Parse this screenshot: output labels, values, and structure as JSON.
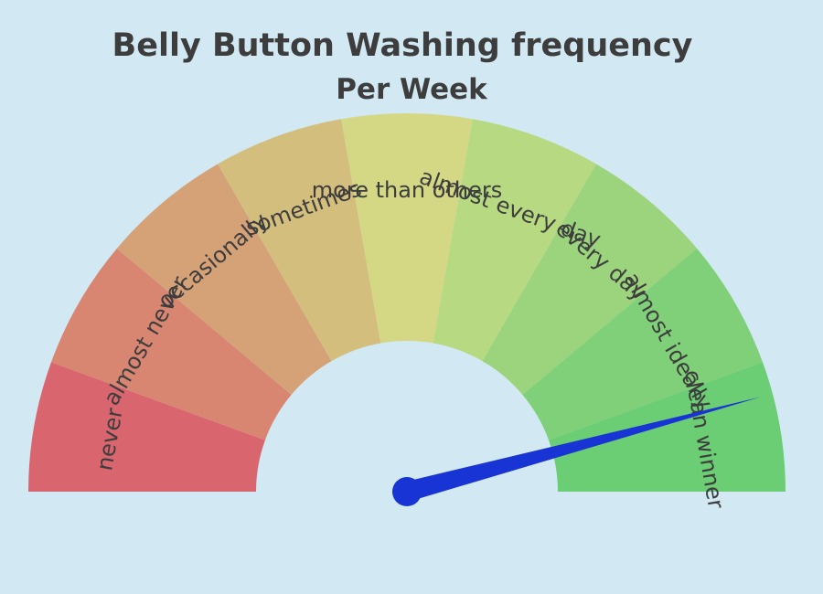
{
  "title": "Belly Button Washing frequency",
  "subtitle": "Per Week",
  "chart_data": {
    "type": "gauge",
    "title": "Belly Button Washing frequency",
    "subtitle": "Per Week",
    "range": [
      0,
      9
    ],
    "categories": [
      "never",
      "almost never",
      "occasionally",
      "sometimes",
      "more than others",
      "almost every day",
      "every day",
      "almost ideally",
      "clean winner"
    ],
    "colors": [
      "#d9656f",
      "#d88672",
      "#d5a277",
      "#d3be7e",
      "#d4d885",
      "#b7d982",
      "#9cd47d",
      "#80d079",
      "#6bcd74"
    ],
    "value": 8.25,
    "needle_color": "#1834d4"
  }
}
